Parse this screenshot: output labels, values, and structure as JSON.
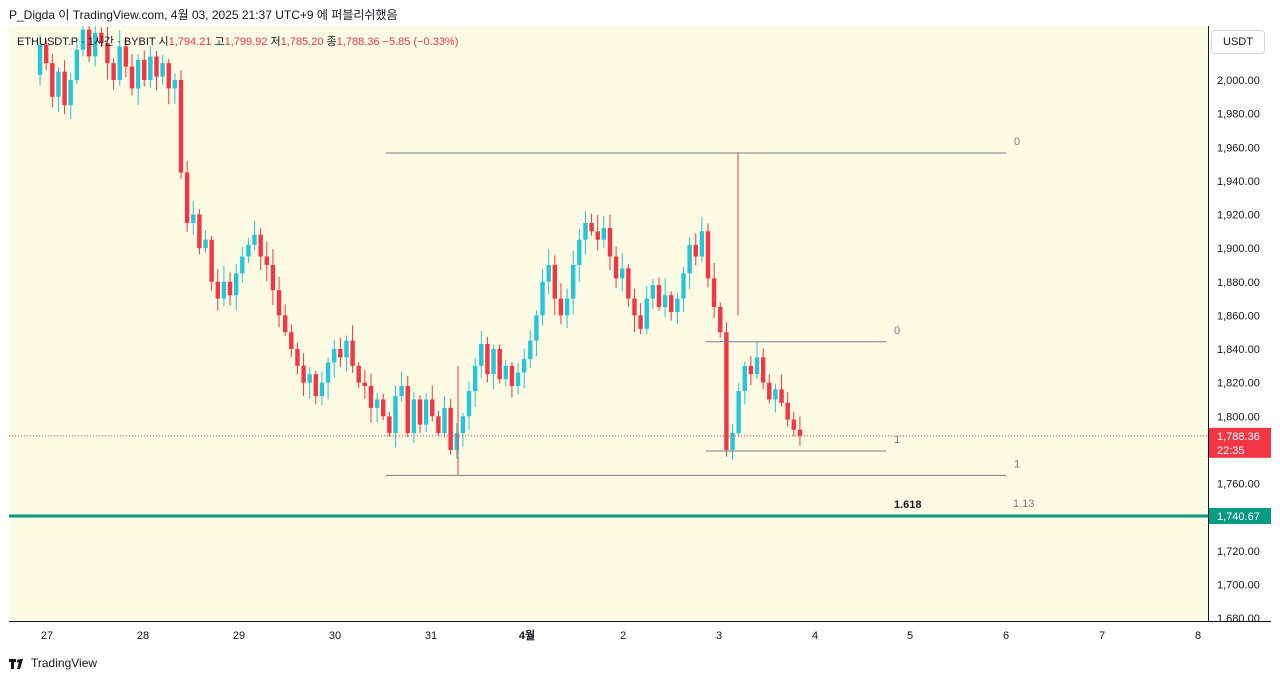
{
  "header": {
    "caption": "P_Digda 이 TradingView.com, 4월 03, 2025 21:37 UTC+9 에 퍼블리쉬했음"
  },
  "symbol": {
    "name": "ETHUSDT.P · 1시간 · BYBIT",
    "open_label": "시",
    "open": "1,794.21",
    "high_label": "고",
    "high": "1,799.92",
    "low_label": "저",
    "low": "1,785.20",
    "close_label": "종",
    "close": "1,788.36",
    "change": "−5.85 (−0.33%)"
  },
  "currency_button": "USDT",
  "footer": {
    "brand": "TradingView"
  },
  "colors": {
    "up": "#26c6da",
    "down": "#f23645",
    "background": "#fdfbe3",
    "support": "#089981",
    "fib": "#787b86"
  },
  "chart_data": {
    "type": "candlestick",
    "title": "ETHUSDT.P 1h BYBIT",
    "ylim": [
      1670,
      2030
    ],
    "y_ticks": [
      "2,000.00",
      "1,980.00",
      "1,960.00",
      "1,940.00",
      "1,920.00",
      "1,900.00",
      "1,880.00",
      "1,860.00",
      "1,840.00",
      "1,820.00",
      "1,800.00",
      "1,760.00",
      "1,720.00",
      "1,700.00",
      "1,680.00"
    ],
    "x_ticks": [
      "27",
      "28",
      "29",
      "30",
      "31",
      "4월",
      "2",
      "3",
      "4",
      "5",
      "6",
      "7",
      "8"
    ],
    "price_labels": [
      {
        "value": 1788.36,
        "text": "1,788.36",
        "countdown": "22:35",
        "color": "#f23645",
        "key": "current"
      },
      {
        "value": 1740.67,
        "text": "1,740.67",
        "color": "#089981",
        "key": "support"
      }
    ],
    "horizontal_lines": [
      {
        "value": 1740.67,
        "color": "#089981",
        "style": "solid"
      },
      {
        "value": 1788.36,
        "color": "#f23645",
        "style": "dotted"
      }
    ],
    "fib_retracements": [
      {
        "levels": [
          {
            "ratio": "0",
            "price": 1956.6
          },
          {
            "ratio": "1",
            "price": 1764.8
          }
        ],
        "start_day": "30",
        "end_day": "6",
        "extension_label": "1.13"
      },
      {
        "levels": [
          {
            "ratio": "0",
            "price": 1844.3
          },
          {
            "ratio": "1",
            "price": 1779.3
          }
        ],
        "start_day": "3",
        "end_day": "5",
        "extension_label": "1.618"
      }
    ],
    "ohlc_path": [
      2003,
      2021,
      2010,
      1990,
      2005,
      1985,
      2000,
      2018,
      2030,
      2014,
      2028,
      2022,
      2010,
      2000,
      2020,
      2008,
      1995,
      2012,
      2000,
      2014,
      2002,
      2010,
      1995,
      2000,
      1945,
      1915,
      1920,
      1900,
      1905,
      1880,
      1870,
      1880,
      1872,
      1885,
      1895,
      1902,
      1908,
      1895,
      1890,
      1875,
      1860,
      1850,
      1840,
      1830,
      1820,
      1825,
      1812,
      1820,
      1832,
      1840,
      1835,
      1845,
      1830,
      1820,
      1818,
      1805,
      1810,
      1800,
      1790,
      1812,
      1818,
      1790,
      1810,
      1795,
      1810,
      1800,
      1790,
      1805,
      1780,
      1790,
      1800,
      1815,
      1830,
      1843,
      1825,
      1840,
      1822,
      1830,
      1818,
      1826,
      1834,
      1845,
      1860,
      1880,
      1890,
      1870,
      1860,
      1870,
      1890,
      1905,
      1915,
      1910,
      1905,
      1912,
      1895,
      1882,
      1888,
      1870,
      1860,
      1852,
      1870,
      1878,
      1865,
      1872,
      1862,
      1870,
      1885,
      1902,
      1895,
      1910,
      1882,
      1865,
      1850,
      1780,
      1790,
      1815,
      1830,
      1825,
      1835,
      1820,
      1810,
      1816,
      1808,
      1798,
      1792,
      1788.36
    ]
  }
}
